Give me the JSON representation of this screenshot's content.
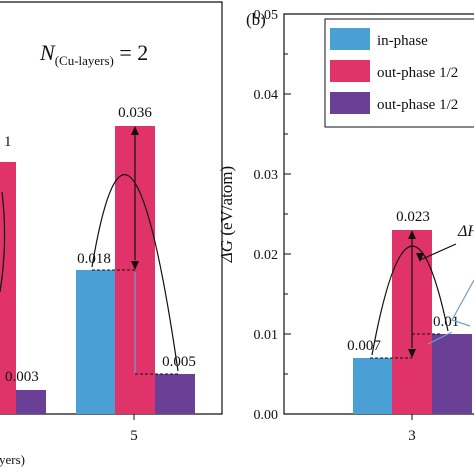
{
  "colors": {
    "in_phase": "#4a9fd4",
    "out_half": "#e0336a",
    "out_other": "#6a3f96",
    "arrow": "#111111",
    "bracket": "#6f9ed0"
  },
  "chart_data": [
    {
      "type": "bar",
      "panel": "",
      "annotation": "N(Cu-layers) = 2",
      "annotation_main": "N",
      "annotation_sub": "(Cu-layers)",
      "annotation_rest": " = 2",
      "xlabel_fragment": "yers)",
      "categories": [
        "5"
      ],
      "series": [
        {
          "key": "in_phase",
          "values": [
            0.018
          ]
        },
        {
          "key": "out_half",
          "values": [
            0.036
          ]
        },
        {
          "key": "out_other",
          "values": [
            0.005
          ]
        }
      ],
      "partial_labels": {
        "left_top": "1",
        "left_bottom": "0.003"
      },
      "data_labels": [
        "0.018",
        "0.036",
        "0.005"
      ],
      "ylim": [
        0,
        0.05
      ]
    },
    {
      "type": "bar",
      "panel": "(b)",
      "ylabel": "ΔG (eV/atom)",
      "ylabel_symbol": "ΔG",
      "ylabel_unit": " (eV/atom)",
      "ylim": [
        0,
        0.05
      ],
      "yticks": [
        "0.00",
        "0.01",
        "0.02",
        "0.03",
        "0.04",
        "0.05"
      ],
      "categories": [
        "3"
      ],
      "legend": [
        "in-phase",
        "out-phase 1/2",
        "out-phase 1/2"
      ],
      "legend_position": "top-right",
      "series": [
        {
          "key": "in_phase",
          "values": [
            0.007
          ]
        },
        {
          "key": "out_half",
          "values": [
            0.023
          ]
        },
        {
          "key": "out_other",
          "values": [
            0.01
          ]
        }
      ],
      "data_labels": [
        "0.007",
        "0.023",
        "0.01"
      ],
      "delta_label": "ΔH"
    }
  ]
}
